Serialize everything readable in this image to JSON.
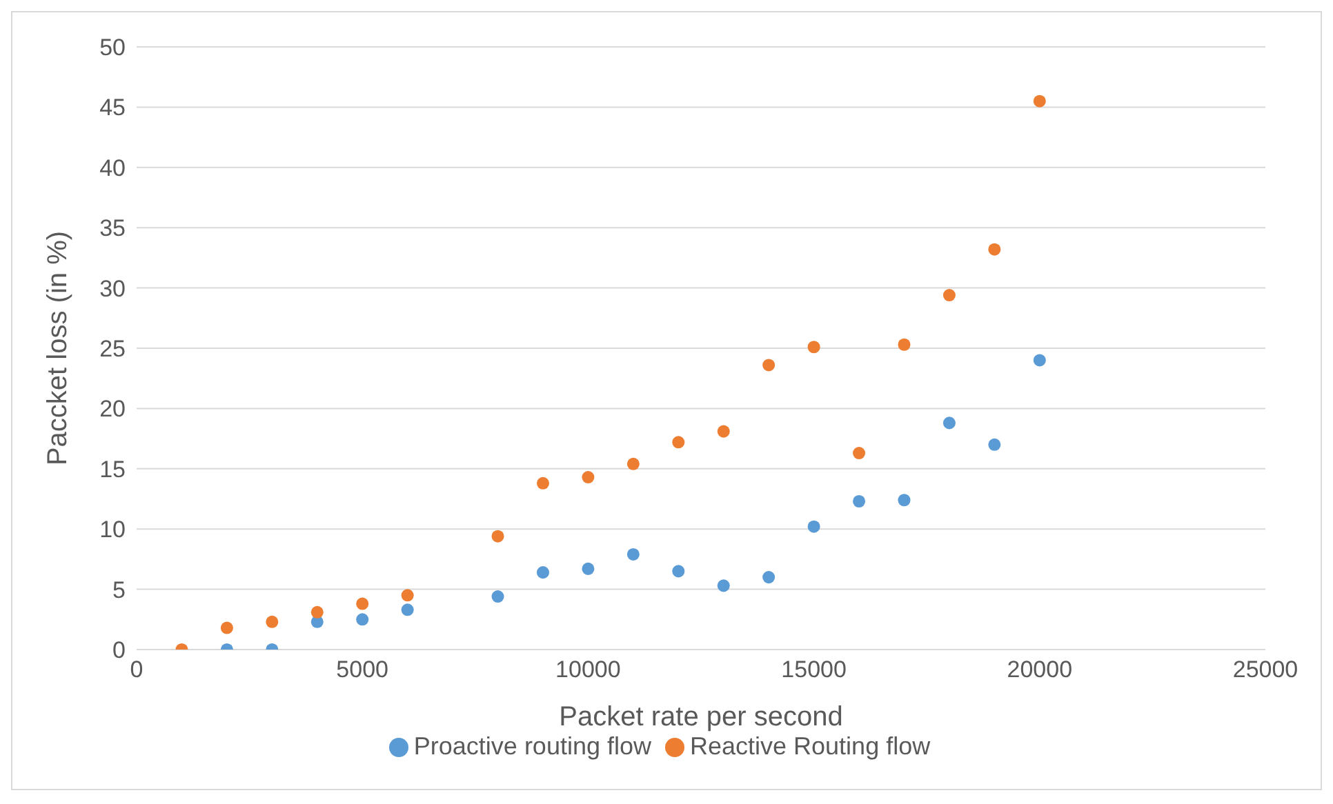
{
  "chart_data": {
    "type": "scatter",
    "xlabel": "Packet rate per second",
    "ylabel": "Paccket loss (in %)",
    "x": [
      1000,
      2000,
      3000,
      4000,
      5000,
      6000,
      8000,
      9000,
      10000,
      11000,
      12000,
      13000,
      14000,
      15000,
      16000,
      17000,
      18000,
      19000,
      20000
    ],
    "series": [
      {
        "name": "Proactive routing flow",
        "color": "#5b9bd5",
        "values": [
          null,
          0,
          0,
          2.3,
          2.5,
          3.3,
          4.4,
          6.4,
          6.7,
          7.9,
          6.5,
          5.3,
          6.0,
          10.2,
          12.3,
          12.4,
          18.8,
          17.0,
          24.0
        ]
      },
      {
        "name": "Reactive Routing flow",
        "color": "#ed7d31",
        "values": [
          0,
          1.8,
          2.3,
          3.1,
          3.8,
          4.5,
          9.4,
          13.8,
          14.3,
          15.4,
          17.2,
          18.1,
          23.6,
          25.1,
          16.3,
          25.3,
          29.4,
          33.2,
          45.5
        ]
      }
    ],
    "xlim": [
      0,
      25000
    ],
    "xticks": [
      0,
      5000,
      10000,
      15000,
      20000,
      25000
    ],
    "ylim": [
      0,
      50
    ],
    "yticks": [
      0,
      5,
      10,
      15,
      20,
      25,
      30,
      35,
      40,
      45,
      50
    ],
    "grid": "y",
    "legend": "bottom",
    "marker": "circle"
  }
}
